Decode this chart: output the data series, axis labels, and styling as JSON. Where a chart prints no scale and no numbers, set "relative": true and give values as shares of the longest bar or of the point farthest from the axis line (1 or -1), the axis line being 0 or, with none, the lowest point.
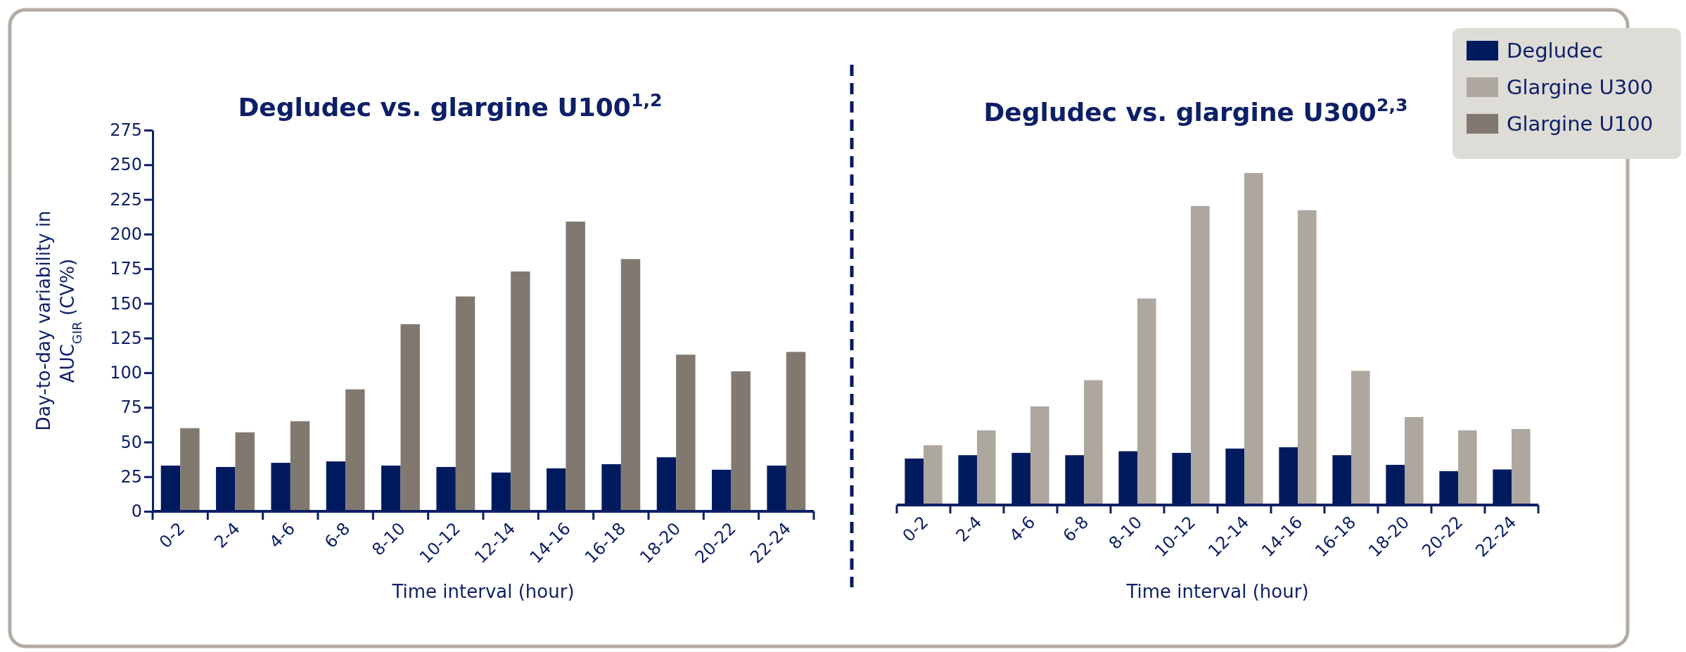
{
  "chart_data": [
    {
      "type": "bar",
      "title": "Degludec vs. glargine U100$^{1,2}$",
      "xlabel": "Time interval (hour)",
      "ylabel": "Day-to-day variability in AUC$_{GIR}$ (CV%)",
      "categories": [
        "0-2",
        "2-4",
        "4-6",
        "6-8",
        "8-10",
        "10-12",
        "12-14",
        "14-16",
        "16-18",
        "18-20",
        "20-22",
        "22-24"
      ],
      "series": [
        {
          "name": "Degludec",
          "color": "#001a5e",
          "values": [
            33,
            32,
            35,
            36,
            33,
            32,
            28,
            31,
            34,
            39,
            30,
            33
          ]
        },
        {
          "name": "Glargine U100",
          "color": "#817870",
          "values": [
            60,
            57,
            65,
            88,
            135,
            155,
            173,
            209,
            182,
            113,
            101,
            115
          ]
        }
      ],
      "ylim": [
        0,
        275
      ],
      "yticks": [
        0,
        25,
        50,
        75,
        100,
        125,
        150,
        175,
        200,
        225,
        250,
        275
      ],
      "legend": "top right"
    },
    {
      "type": "bar",
      "title": "Degludec vs. glargine U300$^{2,3}$",
      "xlabel": "Time interval (hour)",
      "relative": true,
      "categories": [
        "0-2",
        "2-4",
        "4-6",
        "6-8",
        "8-10",
        "10-12",
        "12-14",
        "14-16",
        "16-18",
        "18-20",
        "20-22",
        "22-24"
      ],
      "series": [
        {
          "name": "Degludec",
          "color": "#001a5e",
          "values": [
            0.14,
            0.15,
            0.157,
            0.15,
            0.162,
            0.157,
            0.17,
            0.174,
            0.15,
            0.121,
            0.102,
            0.107
          ]
        },
        {
          "name": "Glargine U300",
          "color": "#aea79f",
          "values": [
            0.18,
            0.225,
            0.297,
            0.376,
            0.622,
            0.901,
            1,
            0.888,
            0.404,
            0.265,
            0.225,
            0.229
          ]
        }
      ],
      "legend": "top right"
    }
  ]
}
